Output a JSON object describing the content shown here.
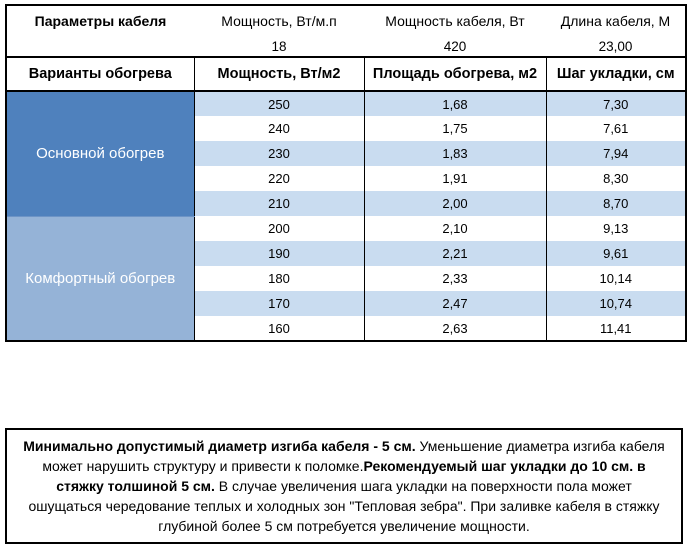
{
  "params": {
    "title": "Параметры кабеля",
    "headers": [
      "Мощность, Вт/м.п",
      "Мощность кабеля, Вт",
      "Длина кабеля, М"
    ],
    "values": [
      "18",
      "420",
      "23,00"
    ]
  },
  "variants": {
    "headers": [
      "Варианты обогрева",
      "Мощность, Вт/м2",
      "Площадь обогрева, м2",
      "Шаг укладки, см"
    ],
    "groups": [
      {
        "label": "Основной обогрев",
        "color": "#4f81bd",
        "rows": [
          [
            "250",
            "1,68",
            "7,30"
          ],
          [
            "240",
            "1,75",
            "7,61"
          ],
          [
            "230",
            "1,83",
            "7,94"
          ],
          [
            "220",
            "1,91",
            "8,30"
          ],
          [
            "210",
            "2,00",
            "8,70"
          ]
        ]
      },
      {
        "label": "Комфортный обогрев",
        "color": "#95b3d7",
        "rows": [
          [
            "200",
            "2,10",
            "9,13"
          ],
          [
            "190",
            "2,21",
            "9,61"
          ],
          [
            "180",
            "2,33",
            "10,14"
          ],
          [
            "170",
            "2,47",
            "10,74"
          ],
          [
            "160",
            "2,63",
            "11,41"
          ]
        ]
      }
    ]
  },
  "note": {
    "segments": [
      {
        "bold": true,
        "text": "Минимально допустимый диаметр изгиба кабеля - 5 см."
      },
      {
        "bold": false,
        "text": "  Уменьшение диаметра изгиба кабеля может нарушить структуру и привести к поломке."
      },
      {
        "bold": true,
        "text": "Рекомендуемый шаг укладки до 10 см. в стяжку толшиной 5 см."
      },
      {
        "bold": false,
        "text": " В  случае увеличения шага укладки на поверхности пола может ошущаться чередование теплых и холодных зон \"Тепловая зебра\". При заливке кабеля в стяжку глубиной более 5 см потребуется увеличение мощности."
      }
    ]
  },
  "colors": {
    "main_group": "#4f81bd",
    "comfort_group": "#95b3d7",
    "stripe": "#c9dcf0",
    "border": "#000000"
  }
}
